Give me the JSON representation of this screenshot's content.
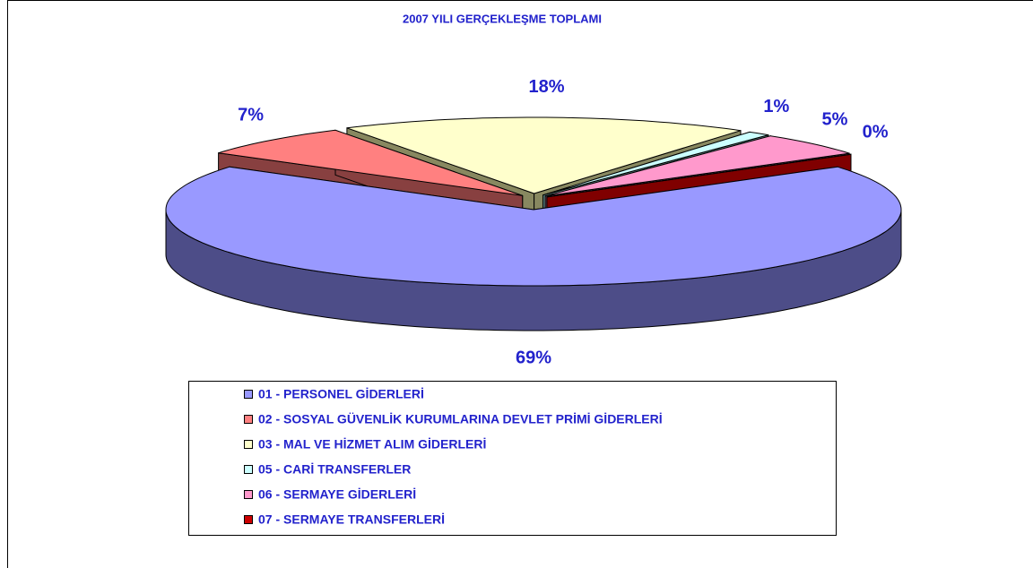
{
  "chart_data": {
    "type": "pie",
    "title": "2007 YILI GERÇEKLEŞME TOPLAMI",
    "categories": [
      "01 - PERSONEL GİDERLERİ",
      "02 - SOSYAL GÜVENLİK KURUMLARINA DEVLET PRİMİ GİDERLERİ",
      "03 - MAL VE HİZMET ALIM GİDERLERİ",
      "05 - CARİ TRANSFERLER",
      "06 - SERMAYE GİDERLERİ",
      "07 - SERMAYE TRANSFERLERİ"
    ],
    "values": [
      69,
      7,
      18,
      1,
      5,
      0
    ],
    "value_labels": [
      "69%",
      "7%",
      "18%",
      "1%",
      "5%",
      "0%"
    ],
    "colors": [
      "#9999ff",
      "#ff8080",
      "#ffffcc",
      "#ccffff",
      "#ff99cc",
      "#cc0000"
    ],
    "side_colors": [
      "#4d4d88",
      "#884040",
      "#888860",
      "#608888",
      "#885070",
      "#800000"
    ],
    "legend": "bottom"
  }
}
